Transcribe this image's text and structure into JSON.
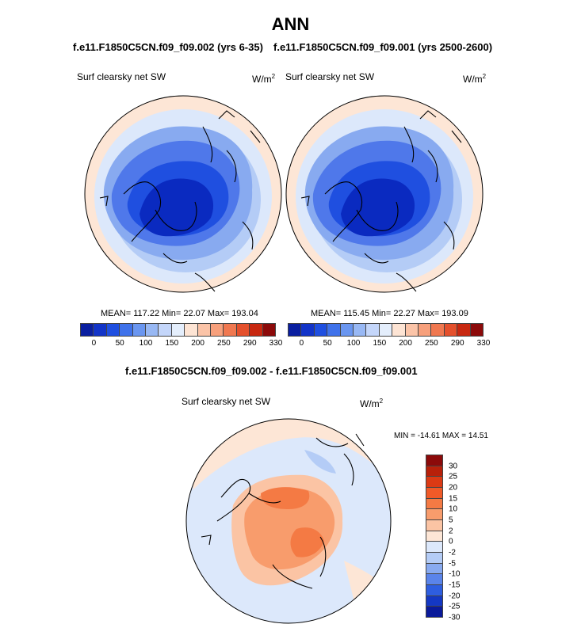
{
  "title": "ANN",
  "left_panel": {
    "run_title": "f.e11.F1850C5CN.f09_f09.002 (yrs 6-35)",
    "variable": "Surf clearsky net SW",
    "units": "W/m",
    "units_sup": "2",
    "stats": "MEAN= 117.22  Min=  22.07  Max= 193.04"
  },
  "right_panel": {
    "run_title": "f.e11.F1850C5CN.f09_f09.001 (yrs 2500-2600)",
    "variable": "Surf clearsky net SW",
    "units": "W/m",
    "units_sup": "2",
    "stats": "MEAN= 115.45  Min=  22.27  Max= 193.09"
  },
  "diff_panel": {
    "title": "f.e11.F1850C5CN.f09_f09.002 - f.e11.F1850C5CN.f09_f09.001",
    "variable": "Surf clearsky net SW",
    "units": "W/m",
    "units_sup": "2",
    "stats": "MIN = -14.61 MAX =  14.51"
  },
  "colorbar_main": {
    "labels": [
      "0",
      "50",
      "100",
      "150",
      "200",
      "250",
      "290",
      "330"
    ],
    "colors": [
      "#0a1fa0",
      "#1234c8",
      "#1f4fe0",
      "#3f72ea",
      "#6a96f0",
      "#98b8f4",
      "#c4d6fa",
      "#e4eefc",
      "#fde4d4",
      "#fbc4a8",
      "#f7a07c",
      "#f07850",
      "#e4502c",
      "#c82810",
      "#8c0a0a"
    ]
  },
  "colorbar_diff": {
    "labels": [
      "30",
      "25",
      "20",
      "15",
      "10",
      "5",
      "2",
      "0",
      "-2",
      "-5",
      "-10",
      "-15",
      "-20",
      "-25",
      "-30"
    ],
    "colors": [
      "#8c0a0a",
      "#b8200a",
      "#dc3a14",
      "#f05a28",
      "#f47a44",
      "#f89c6c",
      "#fbc4a4",
      "#fde6d6",
      "#dce8fb",
      "#b4ccf6",
      "#88aaf0",
      "#5a84ea",
      "#2e5ee0",
      "#1438c4",
      "#0a1a9a"
    ]
  }
}
